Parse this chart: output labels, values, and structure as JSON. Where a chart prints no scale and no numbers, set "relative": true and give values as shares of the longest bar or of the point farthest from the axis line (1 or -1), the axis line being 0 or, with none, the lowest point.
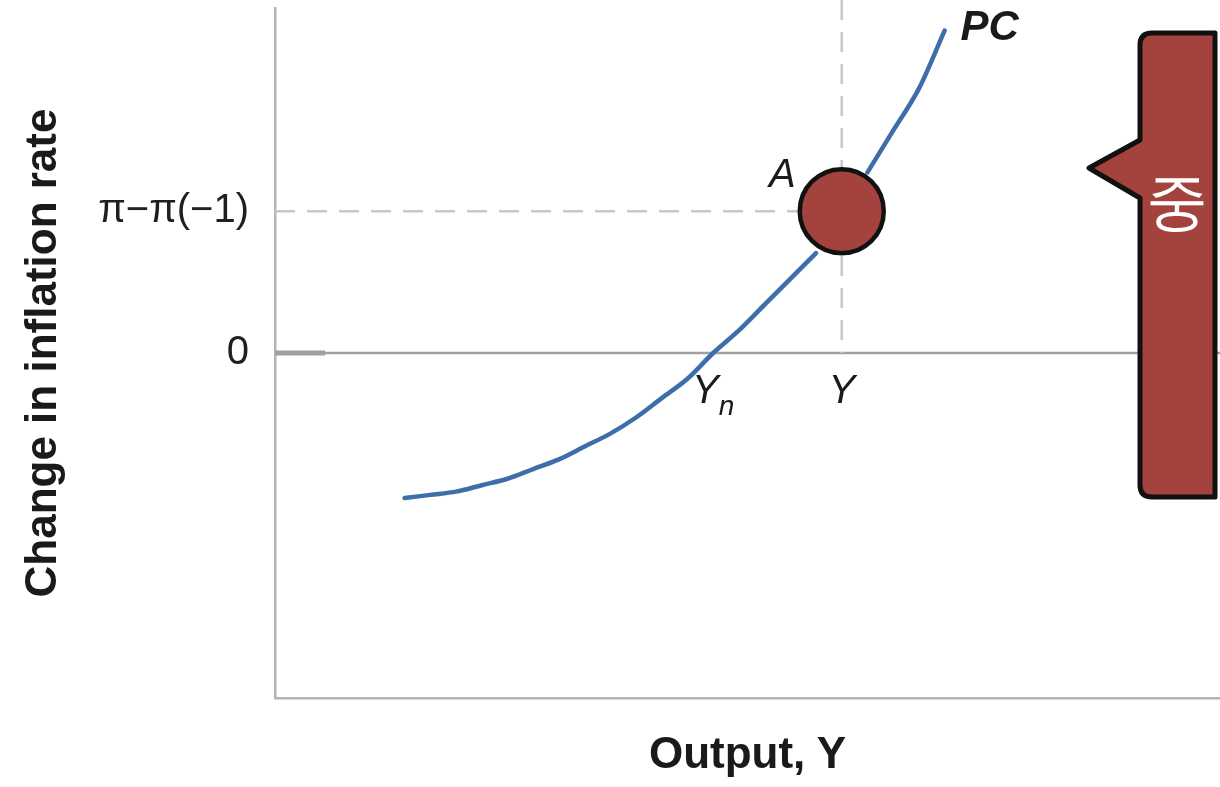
{
  "chart_data": {
    "type": "line",
    "relative": true,
    "categories": [
      null,
      null,
      null,
      null,
      null,
      null,
      null,
      null,
      null,
      null,
      null,
      null,
      "Y$_{n}$",
      null,
      null,
      null,
      null,
      "Y",
      null,
      null,
      null,
      null
    ],
    "series": [
      {
        "name": "PC",
        "color": "#3e6ea9",
        "marker": "none",
        "values": [
          -0.45,
          -0.44,
          -0.43,
          -0.41,
          -0.39,
          -0.36,
          -0.33,
          -0.29,
          -0.25,
          -0.2,
          -0.14,
          -0.08,
          0,
          0.07,
          0.15,
          0.23,
          0.31,
          null,
          0.56,
          0.69,
          0.82,
          1
        ]
      },
      {
        "type": "scatter",
        "color": "#a4423e",
        "marker": "circle",
        "values": [
          null,
          null,
          null,
          null,
          null,
          null,
          null,
          null,
          null,
          null,
          null,
          null,
          null,
          null,
          null,
          null,
          null,
          0.44,
          null,
          null,
          null,
          null
        ]
      }
    ],
    "ref_lines": [
      {
        "axis": "y",
        "value": 0,
        "label": "0",
        "line_style": "solid",
        "color": "#a0a0a0"
      },
      {
        "axis": "y",
        "value": 0.44,
        "label": "π−π(−1)",
        "line_style": "dashed",
        "color": "#c8c8c8"
      },
      {
        "axis": "x",
        "value": "Y",
        "line_style": "dashed",
        "color": "#c8c8c8"
      }
    ],
    "annotations": [
      "Output, Y",
      "Change in inflation rate",
      "중",
      {
        "text": "A",
        "x": "Y",
        "y": 0.44
      }
    ]
  }
}
